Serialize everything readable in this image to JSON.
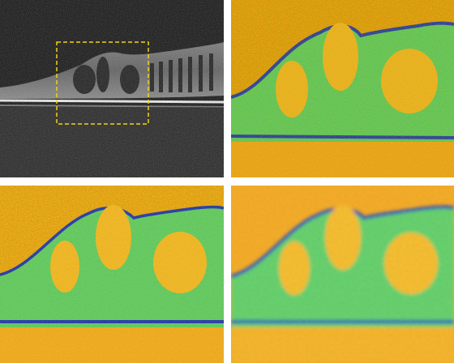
{
  "figure": {
    "panels": [
      {
        "id": "oct-bscan",
        "kind": "grayscale-oct",
        "roi_box_color": "#f2d21a"
      },
      {
        "id": "roi-colormap-raw",
        "kind": "jet-colormap",
        "noise": "high"
      },
      {
        "id": "roi-colormap-denoised",
        "kind": "jet-colormap",
        "noise": "medium"
      },
      {
        "id": "roi-colormap-smoothed",
        "kind": "jet-colormap",
        "noise": "low"
      }
    ],
    "colors": {
      "background_high": "#f59a1e",
      "background_mid": "#f6c83a",
      "tissue_green": "#3fd17a",
      "tissue_cyan": "#34c6d8",
      "boundary_blue": "#1b2fb8",
      "oct_black": "#0a0a0a"
    }
  }
}
